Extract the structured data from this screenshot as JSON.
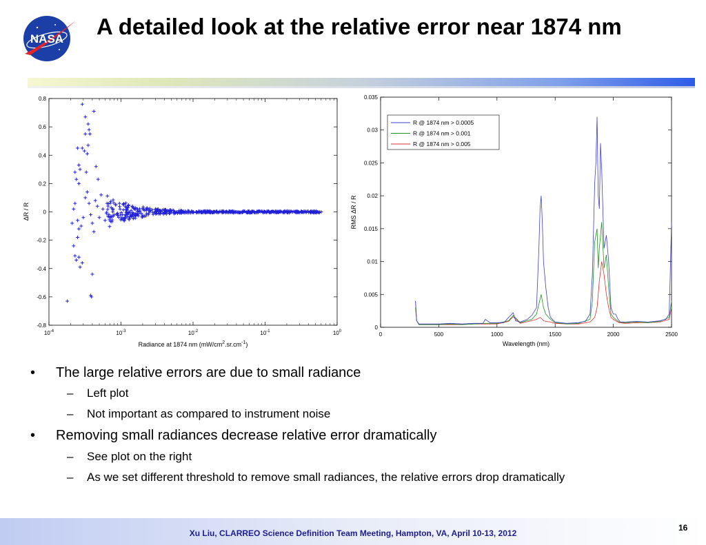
{
  "slide": {
    "title": "A detailed look at the relative error near 1874 nm",
    "logo_text": "NASA",
    "footer": "Xu Liu, CLARREO Science Definition Team Meeting, Hampton, VA, April 10-13, 2012",
    "page_number": "16"
  },
  "bullets": [
    {
      "text": "The large relative errors are due to small radiance",
      "sub": [
        "Left plot",
        "Not important as compared to instrument noise"
      ]
    },
    {
      "text": "Removing small radiances decrease relative error dramatically",
      "sub": [
        "See plot on the right",
        "As we set different threshold to remove small radiances, the relative errors drop dramatically"
      ]
    }
  ],
  "bullet_markers": {
    "level1": "•",
    "level2": "–"
  },
  "colors": {
    "scatter": "#2020d8",
    "series_blue": "#3d3dc8",
    "series_green": "#1f8f1f",
    "series_red": "#d83030",
    "title_bar_end": "#2d5be8",
    "footer_text": "#1d1d8c"
  },
  "chart_data": [
    {
      "type": "scatter",
      "title": "",
      "xlabel": "Radiance at 1874 nm (mW/cm2.sr.cm-1)",
      "xlabel_parts": [
        "Radiance at 1874 nm (mW/cm",
        "2",
        ".sr.cm",
        "-1",
        ")"
      ],
      "ylabel": "ΔR / R",
      "xscale": "log",
      "xlim": [
        0.0001,
        1
      ],
      "ylim": [
        -0.8,
        0.8
      ],
      "x_tick_labels": [
        {
          "base": "10",
          "exp": "-4"
        },
        {
          "base": "10",
          "exp": "-3"
        },
        {
          "base": "10",
          "exp": "-2"
        },
        {
          "base": "10",
          "exp": "-1"
        },
        {
          "base": "10",
          "exp": "0"
        }
      ],
      "y_ticks": [
        "-0.8",
        "-0.6",
        "-0.4",
        "-0.2",
        "0",
        "0.2",
        "0.4",
        "0.6",
        "0.8"
      ],
      "grid": false,
      "marker": "+",
      "points": [
        [
          0.00018,
          -0.63
        ],
        [
          0.00029,
          0.76
        ],
        [
          0.00032,
          0.67
        ],
        [
          0.00035,
          0.62
        ],
        [
          0.00036,
          0.58
        ],
        [
          0.00037,
          0.55
        ],
        [
          0.00032,
          0.55
        ],
        [
          0.00042,
          0.71
        ],
        [
          0.00025,
          0.45
        ],
        [
          0.00029,
          0.45
        ],
        [
          0.00031,
          0.43
        ],
        [
          0.00035,
          0.47
        ],
        [
          0.00034,
          0.41
        ],
        [
          0.00026,
          0.33
        ],
        [
          0.00027,
          0.3
        ],
        [
          0.00033,
          0.28
        ],
        [
          0.00045,
          0.32
        ],
        [
          0.00048,
          0.23
        ],
        [
          0.00023,
          0.28
        ],
        [
          0.00024,
          0.23
        ],
        [
          0.00026,
          0.2
        ],
        [
          0.00038,
          -0.59
        ],
        [
          0.00039,
          -0.6
        ],
        [
          0.0004,
          -0.44
        ],
        [
          0.00027,
          -0.39
        ],
        [
          0.00029,
          -0.36
        ],
        [
          0.00026,
          -0.32
        ],
        [
          0.00024,
          -0.34
        ],
        [
          0.00023,
          -0.31
        ],
        [
          0.00025,
          -0.18
        ],
        [
          0.00022,
          -0.24
        ],
        [
          0.00021,
          -0.08
        ],
        [
          0.00022,
          0.02
        ],
        [
          0.00023,
          0.06
        ],
        [
          0.00025,
          -0.06
        ],
        [
          0.00026,
          -0.12
        ],
        [
          0.00028,
          -0.1
        ],
        [
          0.0003,
          -0.04
        ],
        [
          0.00032,
          0.1
        ],
        [
          0.00034,
          0.14
        ],
        [
          0.00036,
          0.06
        ],
        [
          0.00038,
          -0.02
        ],
        [
          0.0004,
          -0.08
        ],
        [
          0.00042,
          -0.14
        ],
        [
          0.00044,
          0.08
        ],
        [
          0.00047,
          0.04
        ],
        [
          0.0005,
          -0.04
        ],
        [
          0.00053,
          0.12
        ],
        [
          0.00056,
          0.02
        ],
        [
          0.0006,
          -0.06
        ],
        [
          0.00064,
          0.06
        ],
        [
          0.00068,
          -0.02
        ],
        [
          0.00073,
          0.03
        ],
        [
          0.00078,
          -0.03
        ],
        [
          0.00084,
          0.05
        ],
        [
          0.0009,
          -0.01
        ],
        [
          0.00097,
          0.02
        ],
        [
          0.00105,
          -0.02
        ],
        [
          0.00115,
          0.04
        ],
        [
          0.00125,
          -0.01
        ],
        [
          0.00138,
          0.01
        ],
        [
          0.0015,
          -0.03
        ],
        [
          0.0017,
          0.02
        ],
        [
          0.0019,
          -0.01
        ],
        [
          0.0021,
          0.01
        ],
        [
          0.0024,
          -0.02
        ],
        [
          0.0027,
          0.015
        ],
        [
          0.0031,
          0.0
        ],
        [
          0.0035,
          0.01
        ],
        [
          0.004,
          -0.005
        ],
        [
          0.0048,
          0.008
        ],
        [
          0.0056,
          -0.004
        ],
        [
          0.0067,
          0.006
        ],
        [
          0.008,
          -0.003
        ],
        [
          0.0095,
          0.004
        ],
        [
          0.0115,
          -0.003
        ],
        [
          0.014,
          0.003
        ],
        [
          0.017,
          -0.002
        ],
        [
          0.021,
          0.002
        ],
        [
          0.026,
          -0.002
        ],
        [
          0.032,
          0.002
        ],
        [
          0.04,
          -0.001
        ],
        [
          0.05,
          0.001
        ],
        [
          0.063,
          -0.001
        ],
        [
          0.08,
          0.001
        ],
        [
          0.1,
          0.0
        ],
        [
          0.13,
          0.001
        ],
        [
          0.16,
          0.0
        ],
        [
          0.2,
          0.0
        ],
        [
          0.26,
          0.0
        ],
        [
          0.33,
          0.0
        ],
        [
          0.42,
          0.0
        ],
        [
          0.52,
          0.0
        ],
        [
          0.6,
          0.0
        ]
      ]
    },
    {
      "type": "line",
      "title": "",
      "xlabel": "Wavelength (nm)",
      "ylabel": "RMS ΔR / R",
      "xlim": [
        0,
        2500
      ],
      "ylim": [
        0,
        0.035
      ],
      "x_ticks": [
        "0",
        "500",
        "1000",
        "1500",
        "2000",
        "2500"
      ],
      "y_ticks": [
        "0",
        "0.005",
        "0.01",
        "0.015",
        "0.02",
        "0.025",
        "0.03",
        "0.035"
      ],
      "grid": false,
      "legend_placement": "top-left",
      "series": [
        {
          "name": "R @ 1874 nm > 0.0005",
          "color": "#3d3dc8",
          "x": [
            300,
            310,
            330,
            400,
            500,
            600,
            700,
            800,
            880,
            900,
            940,
            1000,
            1060,
            1100,
            1140,
            1160,
            1200,
            1260,
            1300,
            1340,
            1360,
            1370,
            1380,
            1390,
            1395,
            1400,
            1410,
            1420,
            1440,
            1460,
            1500,
            1600,
            1700,
            1760,
            1800,
            1820,
            1840,
            1850,
            1860,
            1870,
            1880,
            1890,
            1900,
            1920,
            1940,
            1960,
            1980,
            2000,
            2020,
            2040,
            2060,
            2100,
            2200,
            2300,
            2400,
            2450,
            2480,
            2500
          ],
          "values": [
            0.004,
            0.001,
            0.0005,
            0.0005,
            0.0005,
            0.0006,
            0.0005,
            0.0006,
            0.0006,
            0.0012,
            0.0007,
            0.0007,
            0.0007,
            0.0015,
            0.0022,
            0.001,
            0.0008,
            0.0012,
            0.0018,
            0.003,
            0.012,
            0.018,
            0.02,
            0.016,
            0.013,
            0.01,
            0.008,
            0.006,
            0.003,
            0.0015,
            0.0008,
            0.0006,
            0.0007,
            0.0009,
            0.002,
            0.008,
            0.022,
            0.025,
            0.032,
            0.02,
            0.018,
            0.028,
            0.024,
            0.012,
            0.014,
            0.01,
            0.003,
            0.002,
            0.002,
            0.0012,
            0.0008,
            0.0008,
            0.0009,
            0.0008,
            0.001,
            0.0012,
            0.002,
            0.016
          ]
        },
        {
          "name": "R @ 1874 nm > 0.001",
          "color": "#1f8f1f",
          "x": [
            300,
            310,
            330,
            400,
            500,
            600,
            700,
            800,
            900,
            1000,
            1100,
            1140,
            1200,
            1300,
            1340,
            1360,
            1380,
            1390,
            1400,
            1420,
            1460,
            1500,
            1600,
            1700,
            1800,
            1820,
            1840,
            1860,
            1870,
            1880,
            1900,
            1920,
            1940,
            1960,
            1980,
            2000,
            2050,
            2100,
            2200,
            2300,
            2400,
            2480,
            2500
          ],
          "values": [
            0.003,
            0.001,
            0.0004,
            0.0004,
            0.0004,
            0.0005,
            0.0004,
            0.0005,
            0.0006,
            0.0006,
            0.001,
            0.0018,
            0.0007,
            0.0012,
            0.002,
            0.0035,
            0.005,
            0.004,
            0.003,
            0.002,
            0.0012,
            0.0007,
            0.0005,
            0.0006,
            0.0012,
            0.004,
            0.013,
            0.015,
            0.009,
            0.012,
            0.016,
            0.009,
            0.011,
            0.006,
            0.002,
            0.0015,
            0.0008,
            0.0007,
            0.0008,
            0.0007,
            0.0009,
            0.0015,
            0.004
          ]
        },
        {
          "name": "R @ 1874 nm > 0.005",
          "color": "#d83030",
          "x": [
            300,
            310,
            330,
            400,
            500,
            600,
            700,
            800,
            900,
            1000,
            1100,
            1140,
            1200,
            1300,
            1340,
            1370,
            1390,
            1400,
            1420,
            1460,
            1500,
            1600,
            1700,
            1800,
            1840,
            1860,
            1880,
            1900,
            1920,
            1940,
            1960,
            1980,
            2000,
            2050,
            2100,
            2200,
            2300,
            2400,
            2480,
            2500
          ],
          "values": [
            0.004,
            0.001,
            0.0004,
            0.0004,
            0.0004,
            0.0004,
            0.0004,
            0.0005,
            0.0005,
            0.0005,
            0.0009,
            0.0016,
            0.0006,
            0.001,
            0.0012,
            0.0015,
            0.0012,
            0.001,
            0.0009,
            0.0008,
            0.0006,
            0.0005,
            0.0005,
            0.0008,
            0.0015,
            0.003,
            0.007,
            0.01,
            0.008,
            0.005,
            0.003,
            0.0015,
            0.0012,
            0.0007,
            0.0006,
            0.0007,
            0.0007,
            0.0008,
            0.0012,
            0.003
          ]
        }
      ]
    }
  ]
}
